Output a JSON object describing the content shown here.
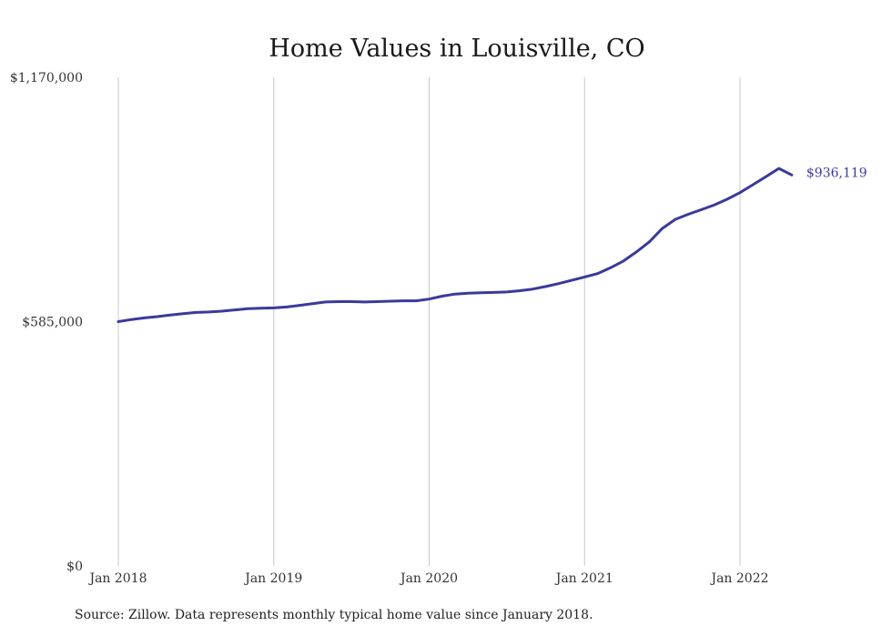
{
  "source_note": "Source: Zillow. Data represents monthly typical home value since January 2018.",
  "chart_data": {
    "type": "line",
    "title": "Home Values in Louisville, CO",
    "xlabel": "",
    "ylabel": "",
    "ylim": [
      0,
      1170000
    ],
    "yticks": [
      {
        "value": 0,
        "label": "$0"
      },
      {
        "value": 585000,
        "label": "$585,000"
      },
      {
        "value": 1170000,
        "label": "$1,170,000"
      }
    ],
    "xticks": [
      {
        "value": "2018-01",
        "label": "Jan 2018"
      },
      {
        "value": "2019-01",
        "label": "Jan 2019"
      },
      {
        "value": "2020-01",
        "label": "Jan 2020"
      },
      {
        "value": "2021-01",
        "label": "Jan 2021"
      },
      {
        "value": "2022-01",
        "label": "Jan 2022"
      }
    ],
    "grid": "vertical",
    "end_label": "$936,119",
    "series": [
      {
        "color": "#3b3a9a",
        "x": [
          "2018-01",
          "2018-02",
          "2018-03",
          "2018-04",
          "2018-05",
          "2018-06",
          "2018-07",
          "2018-08",
          "2018-09",
          "2018-10",
          "2018-11",
          "2018-12",
          "2019-01",
          "2019-02",
          "2019-03",
          "2019-04",
          "2019-05",
          "2019-06",
          "2019-07",
          "2019-08",
          "2019-09",
          "2019-10",
          "2019-11",
          "2019-12",
          "2020-01",
          "2020-02",
          "2020-03",
          "2020-04",
          "2020-05",
          "2020-06",
          "2020-07",
          "2020-08",
          "2020-09",
          "2020-10",
          "2020-11",
          "2020-12",
          "2021-01",
          "2021-02",
          "2021-03",
          "2021-04",
          "2021-05",
          "2021-06",
          "2021-07",
          "2021-08",
          "2021-09",
          "2021-10",
          "2021-11",
          "2021-12",
          "2022-01",
          "2022-02",
          "2022-03",
          "2022-04",
          "2022-05"
        ],
        "values": [
          585000,
          590000,
          594000,
          597000,
          601000,
          604000,
          607000,
          608000,
          610000,
          613000,
          616000,
          617000,
          618000,
          620000,
          624000,
          628000,
          632000,
          633000,
          633000,
          632000,
          633000,
          634000,
          635000,
          635000,
          639000,
          646000,
          651000,
          653000,
          654000,
          655000,
          656000,
          659000,
          663000,
          669000,
          676000,
          684000,
          692000,
          700000,
          714000,
          730000,
          752000,
          776000,
          808000,
          830000,
          842000,
          853000,
          864000,
          878000,
          894000,
          913000,
          932000,
          952000,
          936119
        ]
      }
    ]
  }
}
